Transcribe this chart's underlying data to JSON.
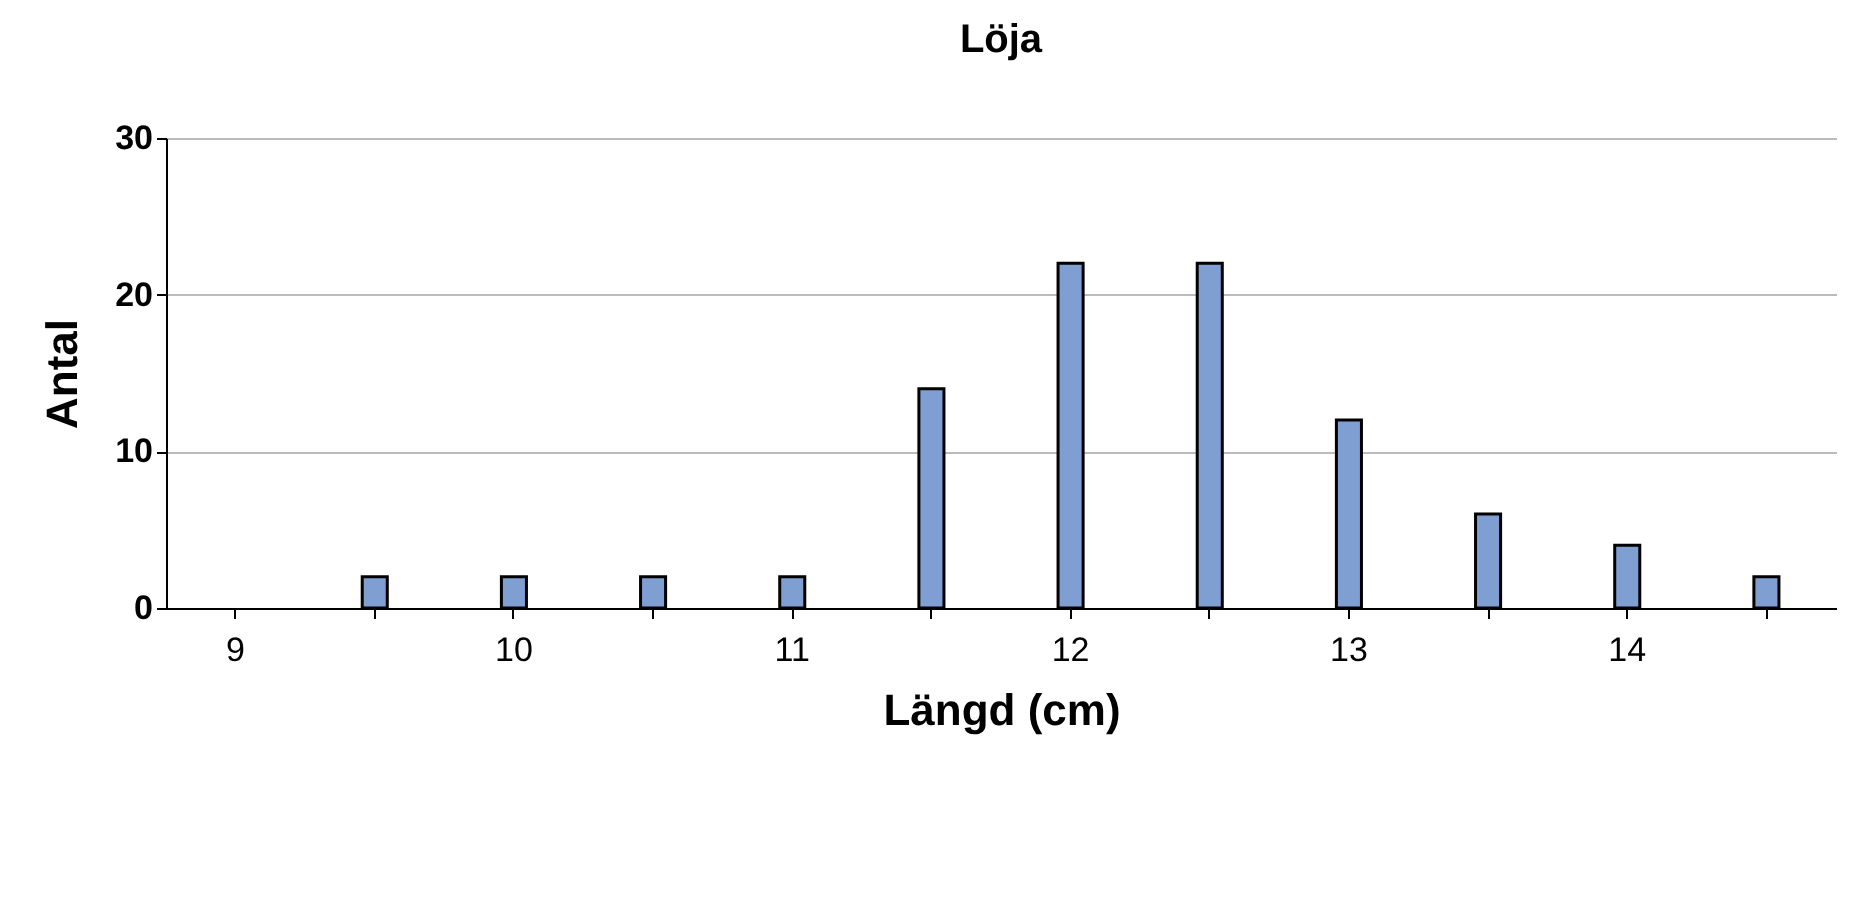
{
  "chart_data": {
    "type": "bar",
    "title": "Löja",
    "xlabel": "Längd (cm)",
    "ylabel": "Antal",
    "categories": [
      "9",
      null,
      "10",
      null,
      "11",
      null,
      "12",
      null,
      "13",
      null,
      "14",
      null
    ],
    "values": [
      0,
      2,
      2,
      2,
      2,
      14,
      22,
      22,
      12,
      6,
      4,
      2
    ],
    "color": "#7f9fd3",
    "ylim": [
      0,
      30
    ],
    "yticks": [
      0,
      10,
      20,
      30
    ],
    "grid": "y"
  }
}
